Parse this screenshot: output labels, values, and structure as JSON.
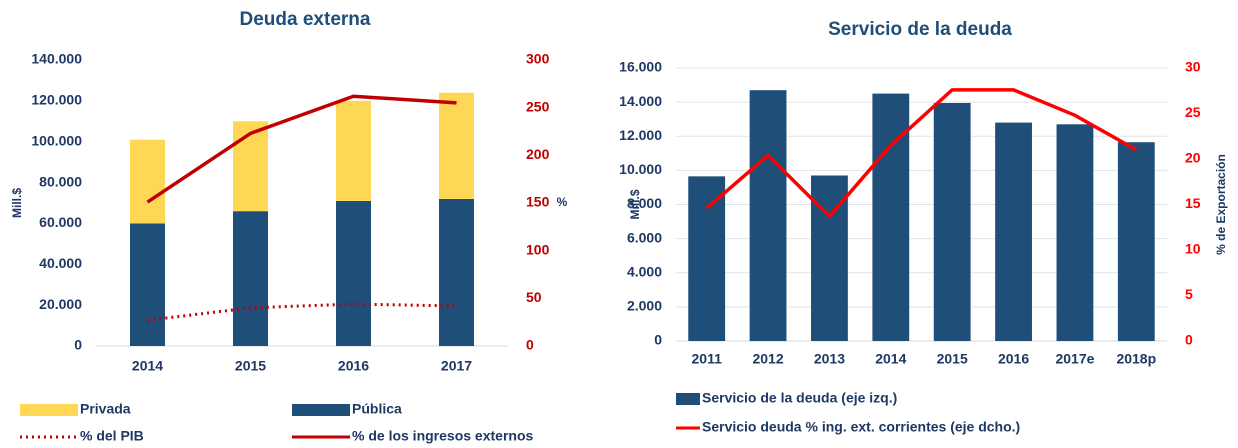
{
  "chart_data": [
    {
      "type": "bar",
      "stacked": true,
      "title": "Deuda externa",
      "y_label": "Mill.$",
      "y2_label": "%",
      "categories": [
        "2014",
        "2015",
        "2016",
        "2017"
      ],
      "series": [
        {
          "name": "Pública",
          "type": "bar",
          "color": "#1f4e79",
          "values": [
            60000,
            66000,
            71000,
            72000
          ]
        },
        {
          "name": "Privada",
          "type": "bar",
          "color": "#ffd757",
          "values": [
            41000,
            44000,
            49000,
            52000
          ]
        },
        {
          "name": "% del PIB",
          "type": "line",
          "style": "dotted",
          "axis": "y2",
          "color": "#c00000",
          "values": [
            27,
            40,
            44,
            42
          ]
        },
        {
          "name": "% de los ingresos externos",
          "type": "line",
          "style": "solid",
          "axis": "y2",
          "color": "#c00000",
          "values": [
            151,
            223,
            262,
            255
          ]
        }
      ],
      "ylim": [
        0,
        140000
      ],
      "yticks": [
        0,
        {
          "value": 20000,
          "label": "20.000"
        },
        {
          "value": 40000,
          "label": "40.000"
        },
        {
          "value": 60000,
          "label": "60.000"
        },
        {
          "value": 80000,
          "label": "80.000"
        },
        {
          "value": 100000,
          "label": "100.000"
        },
        {
          "value": 120000,
          "label": "120.000"
        },
        {
          "value": 140000,
          "label": "140.000"
        }
      ],
      "y2lim": [
        0,
        300
      ],
      "y2ticks": [
        0,
        50,
        100,
        150,
        200,
        250,
        300
      ],
      "grid": false
    },
    {
      "type": "bar",
      "stacked": false,
      "title": "Servicio de la deuda",
      "y_label": "Mill.$",
      "y2_label": "% de Exportación",
      "categories": [
        "2011",
        "2012",
        "2013",
        "2014",
        "2015",
        "2016",
        "2017e",
        "2018p"
      ],
      "series": [
        {
          "name": "Servicio de la deuda (eje izq.)",
          "type": "bar",
          "color": "#1f4e79",
          "values": [
            9650,
            14700,
            9700,
            14500,
            13950,
            12800,
            12700,
            11650
          ]
        },
        {
          "name": "Servicio deuda % ing. ext. corrientes (eje dcho.)",
          "type": "line",
          "style": "solid",
          "axis": "y2",
          "color": "#ff0000",
          "values": [
            14.6,
            20.4,
            13.7,
            21.5,
            27.6,
            27.6,
            24.8,
            21.0
          ]
        }
      ],
      "ylim": [
        0,
        16000
      ],
      "yticks": [
        0,
        {
          "value": 2000,
          "label": "2.000"
        },
        {
          "value": 4000,
          "label": "4.000"
        },
        {
          "value": 6000,
          "label": "6.000"
        },
        {
          "value": 8000,
          "label": "8.000"
        },
        {
          "value": 10000,
          "label": "10.000"
        },
        {
          "value": 12000,
          "label": "12.000"
        },
        {
          "value": 14000,
          "label": "14.000"
        },
        {
          "value": 16000,
          "label": "16.000"
        }
      ],
      "y2lim": [
        0,
        30
      ],
      "y2ticks": [
        0,
        5,
        10,
        15,
        20,
        25,
        30
      ],
      "grid": true
    }
  ]
}
